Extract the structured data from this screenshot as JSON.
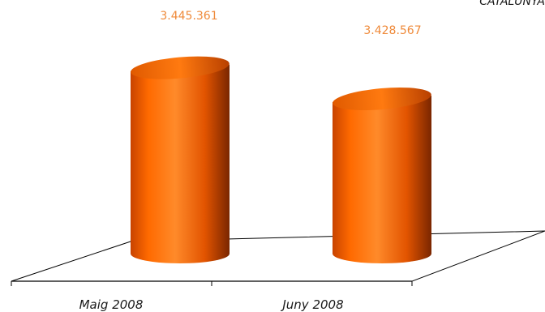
{
  "region_label": "CATALUNYA",
  "colors": {
    "bar_base": "#ff6a00",
    "bar_dark": "#8a2e00",
    "bar_light": "#ff9a3c",
    "value_label": "#ef8a3a"
  },
  "chart_data": {
    "type": "bar",
    "style": "3d-cylinder",
    "title": "",
    "xlabel": "",
    "ylabel": "",
    "categories": [
      "Maig 2008",
      "Juny 2008"
    ],
    "values": [
      3445361,
      3428567
    ],
    "value_labels": [
      "3.445.361",
      "3.428.567"
    ],
    "grid": false,
    "legend": "none"
  }
}
